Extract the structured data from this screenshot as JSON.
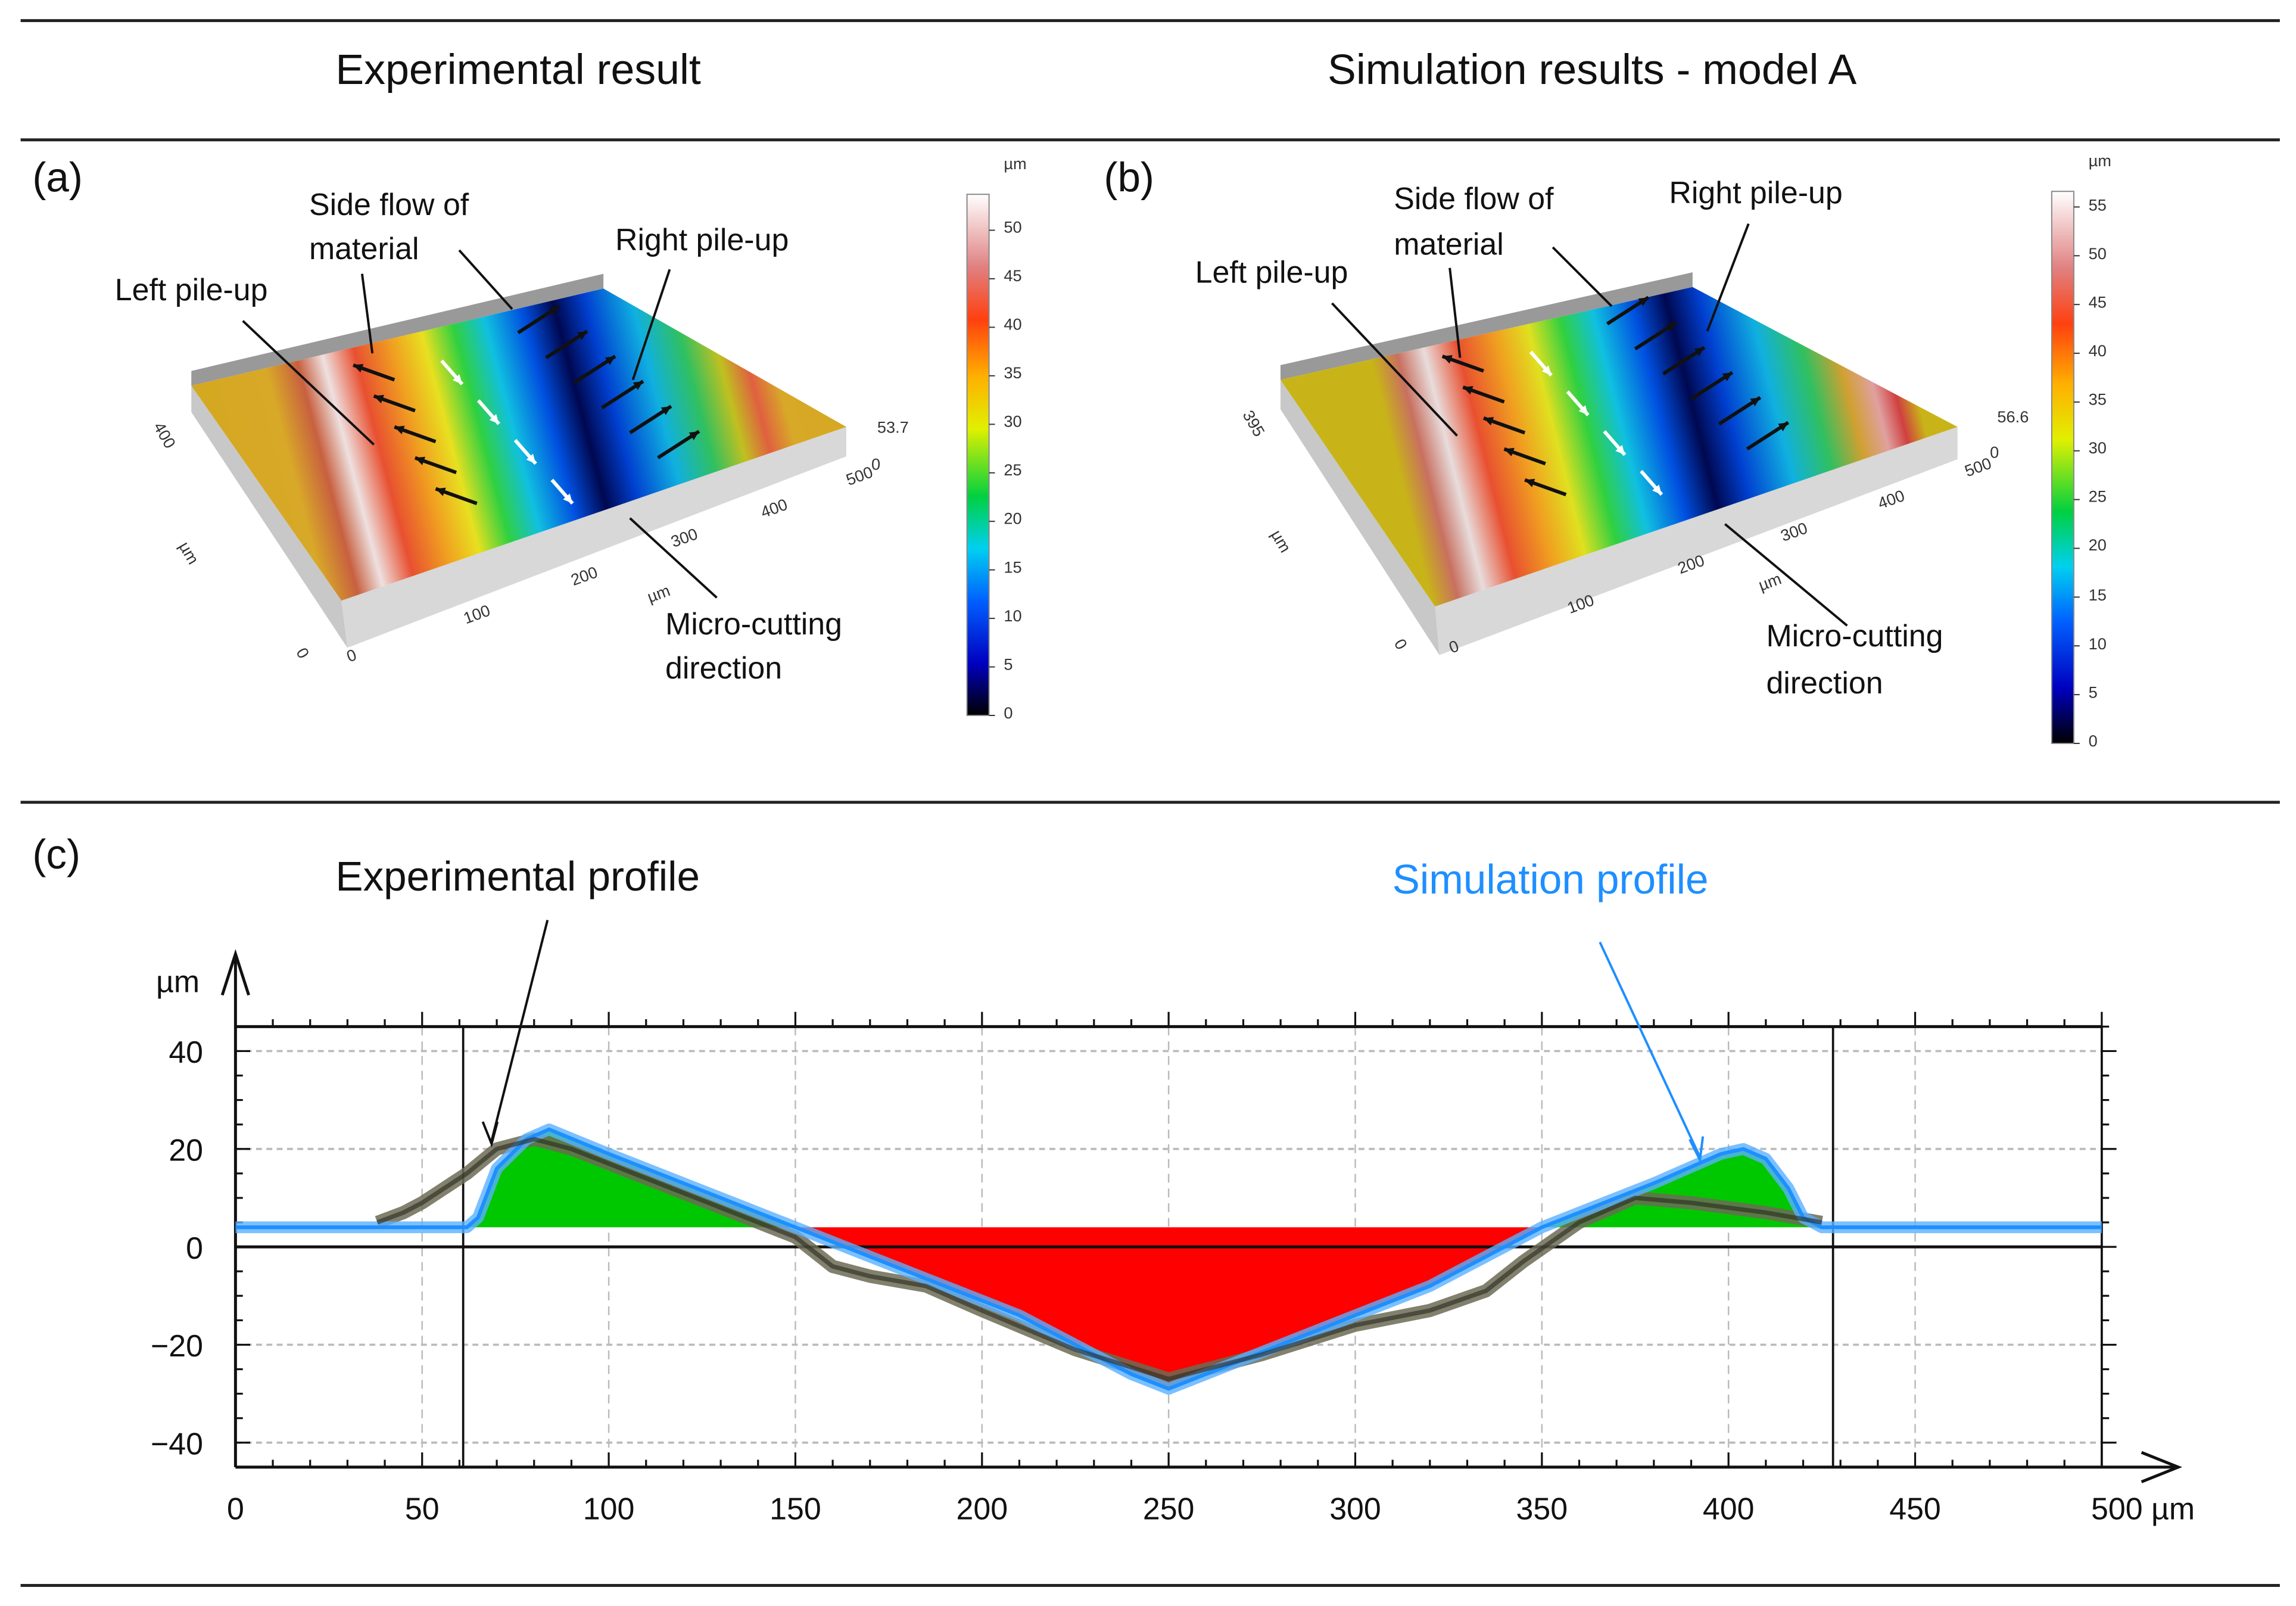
{
  "headers": {
    "left": "Experimental result",
    "right": "Simulation results - model A"
  },
  "panel_a": {
    "label": "(a)",
    "annotations": {
      "side_flow": "Side flow of",
      "side_flow2": "material",
      "right_pile": "Right pile-up",
      "left_pile": "Left pile-up",
      "cutting": "Micro-cutting",
      "cutting2": "direction"
    },
    "axis": {
      "unit": "µm",
      "y_tick": "400",
      "x_ticks": [
        "0",
        "100",
        "200",
        "300",
        "400",
        "500"
      ],
      "origin": "0",
      "z_top": "53.7",
      "z_zero": "0"
    },
    "colorbar": {
      "unit": "µm",
      "ticks": [
        "0",
        "5",
        "10",
        "15",
        "20",
        "25",
        "30",
        "35",
        "40",
        "45",
        "50"
      ],
      "max": 53.7
    }
  },
  "panel_b": {
    "label": "(b)",
    "annotations": {
      "side_flow": "Side flow of",
      "side_flow2": "material",
      "right_pile": "Right pile-up",
      "left_pile": "Left pile-up",
      "cutting": "Micro-cutting",
      "cutting2": "direction"
    },
    "axis": {
      "unit": "µm",
      "y_tick": "395",
      "x_ticks": [
        "0",
        "100",
        "200",
        "300",
        "400",
        "500"
      ],
      "origin": "0",
      "z_top": "56.6",
      "z_zero": "0"
    },
    "colorbar": {
      "unit": "µm",
      "ticks": [
        "0",
        "5",
        "10",
        "15",
        "20",
        "25",
        "30",
        "35",
        "40",
        "45",
        "50",
        "55"
      ],
      "max": 56.6
    }
  },
  "colors": {
    "experimental": "#4a4a3a",
    "simulation": "#1e8fff",
    "above": "#00c800",
    "below": "#ff0000"
  },
  "chart_data": {
    "type": "line",
    "panel_label": "(c)",
    "ylabel": "µm",
    "xlabel": "µm",
    "xlim": [
      0,
      500
    ],
    "ylim": [
      -45,
      45
    ],
    "x_ticks": [
      0,
      50,
      100,
      150,
      200,
      250,
      300,
      350,
      400,
      450,
      500
    ],
    "x_tick_labels": [
      "0",
      "50",
      "100",
      "150",
      "200",
      "250",
      "300",
      "350",
      "400",
      "450",
      "500 µm"
    ],
    "y_ticks": [
      -40,
      -20,
      0,
      20,
      40
    ],
    "y_tick_labels": [
      "−40",
      "−20",
      "0",
      "20",
      "40"
    ],
    "grid": true,
    "reference_level": 4,
    "vertical_markers": [
      61,
      428
    ],
    "annotations": {
      "experimental": "Experimental profile",
      "simulation": "Simulation profile"
    },
    "series": [
      {
        "name": "Simulation profile",
        "x": [
          0,
          62,
          65,
          70,
          78,
          84,
          100,
          120,
          150,
          180,
          210,
          240,
          250,
          260,
          290,
          320,
          350,
          380,
          398,
          404,
          410,
          416,
          420,
          425,
          500
        ],
        "y": [
          4,
          4,
          6,
          16,
          22,
          24,
          19,
          13,
          4,
          -5,
          -14,
          -26,
          -29,
          -26,
          -17,
          -8,
          4,
          13,
          19,
          20,
          18,
          12,
          6,
          4,
          4
        ]
      },
      {
        "name": "Experimental profile",
        "x": [
          38,
          45,
          50,
          56,
          62,
          70,
          80,
          90,
          100,
          120,
          140,
          150,
          160,
          170,
          185,
          200,
          225,
          250,
          275,
          300,
          320,
          335,
          345,
          360,
          375,
          390,
          410,
          425
        ],
        "y": [
          5,
          7,
          9,
          12,
          15,
          20,
          22,
          20,
          17,
          11,
          5,
          2,
          -4,
          -6,
          -8,
          -13,
          -21,
          -27,
          -22,
          -16,
          -13,
          -9,
          -3,
          5,
          10,
          9,
          7,
          5
        ]
      }
    ]
  }
}
